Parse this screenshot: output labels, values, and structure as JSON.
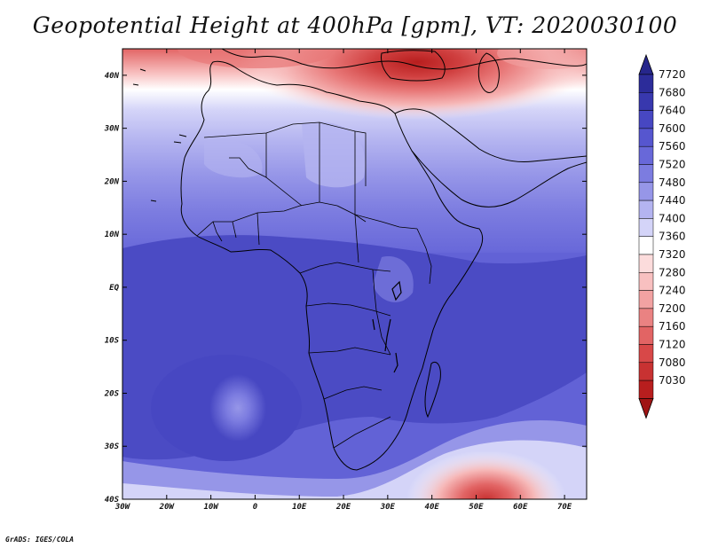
{
  "title": "Geopotential Height at 400hPa [gpm], VT: 2020030100",
  "footer": "GrADS: IGES/COLA",
  "x_ticks": [
    "30W",
    "20W",
    "10W",
    "0",
    "10E",
    "20E",
    "30E",
    "40E",
    "50E",
    "60E",
    "70E"
  ],
  "y_ticks": [
    "40N",
    "30N",
    "20N",
    "10N",
    "EQ",
    "10S",
    "20S",
    "30S",
    "40S"
  ],
  "colorbar": {
    "labels": [
      "7720",
      "7680",
      "7640",
      "7600",
      "7560",
      "7520",
      "7480",
      "7440",
      "7400",
      "7360",
      "7320",
      "7280",
      "7240",
      "7200",
      "7160",
      "7120",
      "7080",
      "7030"
    ],
    "colors": [
      "#2c2c9a",
      "#3838ae",
      "#4747c2",
      "#5656cf",
      "#6868d9",
      "#7c7ce0",
      "#9696e8",
      "#b4b4f0",
      "#d4d4f8",
      "#ffffff",
      "#fcdcdc",
      "#f8c0c0",
      "#f2a2a2",
      "#ea8282",
      "#e26464",
      "#d84848",
      "#c83232",
      "#b81e1e"
    ],
    "arrow_top_color": "#26268c",
    "arrow_bottom_color": "#a01414"
  },
  "map": {
    "lon_range": [
      -30,
      75
    ],
    "lat_range": [
      -40,
      45
    ],
    "background_color": "#6a6ad8",
    "land_color": "#5656cf",
    "dark_blue": "#4b4bc4",
    "high_red": "#c83232",
    "border_color": "#000000"
  }
}
